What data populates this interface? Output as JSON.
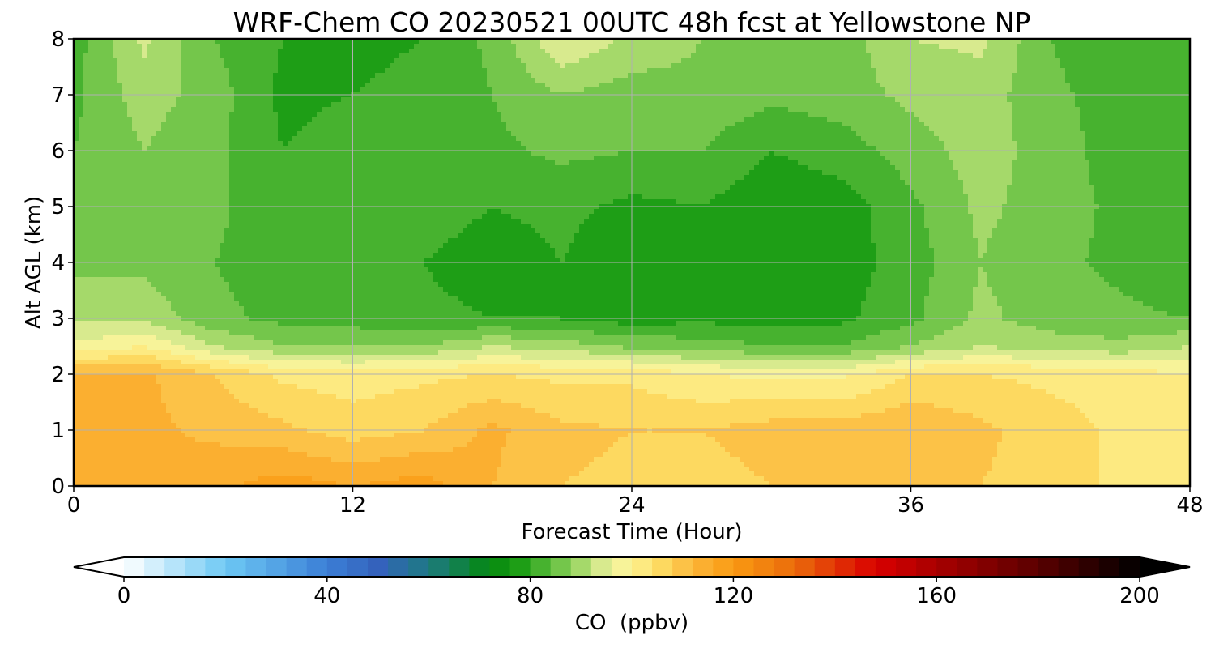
{
  "chart_data": {
    "type": "heatmap",
    "title": "WRF-Chem CO  20230521 00UTC 48h fcst at Yellowstone NP",
    "xlabel": "Forecast Time (Hour)",
    "ylabel": "Alt AGL (km)",
    "xlim": [
      0,
      48
    ],
    "ylim": [
      0,
      8
    ],
    "x_ticks": [
      0,
      12,
      24,
      36,
      48
    ],
    "y_ticks": [
      0,
      1,
      2,
      3,
      4,
      5,
      6,
      7,
      8
    ],
    "grid": true,
    "x": [
      0,
      3,
      6,
      9,
      12,
      15,
      18,
      21,
      24,
      27,
      30,
      33,
      36,
      39,
      42,
      45,
      48
    ],
    "y": [
      0,
      1,
      2,
      2.5,
      3,
      4,
      5,
      6,
      7,
      8
    ],
    "z": [
      [
        113,
        112,
        115,
        118,
        116,
        118,
        112,
        108,
        107,
        106,
        108,
        109,
        110,
        108,
        106,
        103,
        102
      ],
      [
        113,
        113,
        111,
        109,
        106,
        108,
        113,
        109,
        108,
        108,
        110,
        110,
        112,
        109,
        106,
        103,
        102
      ],
      [
        112,
        113,
        108,
        103,
        102,
        103,
        104,
        103,
        103,
        100,
        99,
        99,
        104,
        104,
        103,
        102,
        100
      ],
      [
        97,
        100,
        92,
        88,
        88,
        88,
        92,
        90,
        87,
        86,
        84,
        84,
        88,
        92,
        90,
        89,
        92
      ],
      [
        91,
        91,
        85,
        83,
        82,
        81,
        80,
        80,
        78,
        79,
        78,
        79,
        83,
        89,
        86,
        85,
        84
      ],
      [
        87,
        87,
        84,
        82,
        81,
        80,
        78,
        80,
        77,
        79,
        77,
        78,
        82,
        88,
        85,
        83,
        80
      ],
      [
        86,
        87,
        85,
        81,
        83,
        82,
        80,
        81,
        79,
        80,
        77,
        78,
        83,
        89,
        86,
        83,
        80
      ],
      [
        84,
        88,
        85,
        80,
        82,
        81,
        83,
        85,
        84,
        84,
        80,
        82,
        86,
        90,
        86,
        82,
        81
      ],
      [
        83,
        90,
        86,
        79,
        80,
        81,
        84,
        88,
        86,
        87,
        85,
        86,
        89,
        90,
        85,
        82,
        80
      ],
      [
        82,
        93,
        84,
        80,
        79,
        80,
        85,
        96,
        91,
        88,
        87,
        86,
        92,
        93,
        84,
        81,
        82
      ]
    ],
    "colorbar": {
      "label": "CO  (ppbv)",
      "min": 0,
      "max": 200,
      "ticks": [
        0,
        40,
        80,
        120,
        160,
        200
      ],
      "extend": "both"
    }
  },
  "colormap_stops": [
    {
      "v": 0,
      "c": "#ffffff"
    },
    {
      "v": 20,
      "c": "#6dc8f4"
    },
    {
      "v": 40,
      "c": "#3b7fd6"
    },
    {
      "v": 50,
      "c": "#3462bc"
    },
    {
      "v": 60,
      "c": "#1e7a82"
    },
    {
      "v": 72,
      "c": "#03880f"
    },
    {
      "v": 78,
      "c": "#1e9e16"
    },
    {
      "v": 84,
      "c": "#5bbc3c"
    },
    {
      "v": 90,
      "c": "#a5d96a"
    },
    {
      "v": 96,
      "c": "#f1f3a0"
    },
    {
      "v": 100,
      "c": "#fdf391"
    },
    {
      "v": 106,
      "c": "#fdd960"
    },
    {
      "v": 112,
      "c": "#fbb63a"
    },
    {
      "v": 120,
      "c": "#f99a12"
    },
    {
      "v": 132,
      "c": "#ea6b0b"
    },
    {
      "v": 148,
      "c": "#d90000"
    },
    {
      "v": 160,
      "c": "#a80000"
    },
    {
      "v": 180,
      "c": "#5a0000"
    },
    {
      "v": 200,
      "c": "#000000"
    }
  ]
}
